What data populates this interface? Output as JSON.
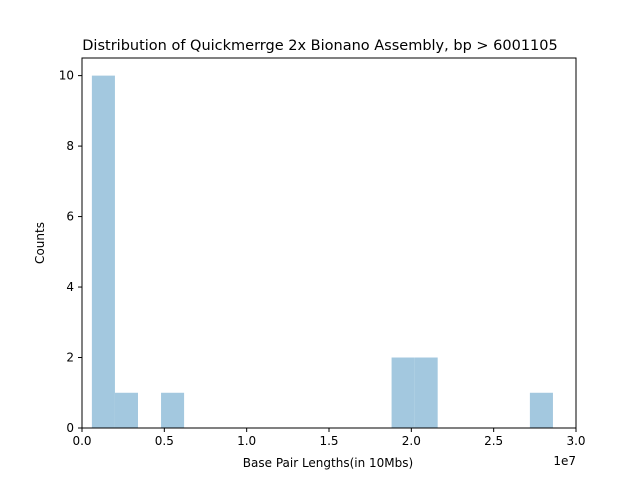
{
  "chart_data": {
    "type": "bar",
    "title": "Distribution of Quickmerrge 2x Bionano Assembly, bp > 6001105",
    "xlabel": "Base Pair Lengths(in 10Mbs)",
    "ylabel": "Counts",
    "x_offset_text": "1e7",
    "xlim": [
      0,
      30000000
    ],
    "ylim": [
      0,
      10.5
    ],
    "xticks": [
      0,
      5000000,
      10000000,
      15000000,
      20000000,
      25000000,
      30000000
    ],
    "xtick_labels": [
      "0.0",
      "0.5",
      "1.0",
      "1.5",
      "2.0",
      "2.5",
      "3.0"
    ],
    "yticks": [
      0,
      2,
      4,
      6,
      8,
      10
    ],
    "ytick_labels": [
      "0",
      "2",
      "4",
      "6",
      "8",
      "10"
    ],
    "bar_color": "#a3c8df",
    "bins": [
      {
        "x0": 600000,
        "x1": 2000000,
        "count": 10
      },
      {
        "x0": 2000000,
        "x1": 3400000,
        "count": 1
      },
      {
        "x0": 4800000,
        "x1": 6200000,
        "count": 1
      },
      {
        "x0": 18800000,
        "x1": 20200000,
        "count": 2
      },
      {
        "x0": 20200000,
        "x1": 21600000,
        "count": 2
      },
      {
        "x0": 27200000,
        "x1": 28600000,
        "count": 1
      }
    ]
  }
}
